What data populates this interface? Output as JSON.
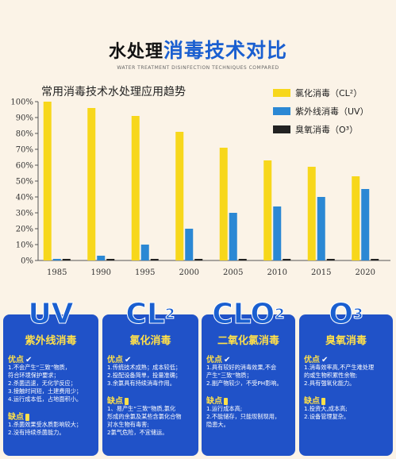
{
  "header": {
    "title_main": "水处理",
    "title_accent": "消毒技术对比",
    "subtitle": "WATER TREATMENT DISINFECTION TECHNIQUES COMPARED"
  },
  "chart_data": {
    "type": "bar",
    "title": "常用消毒技术水处理应用趋势",
    "categories": [
      "1985",
      "1990",
      "1995",
      "2000",
      "2005",
      "2010",
      "2015",
      "2020"
    ],
    "yticks": [
      "0%",
      "10%",
      "20%",
      "30%",
      "40%",
      "50%",
      "60%",
      "70%",
      "80%",
      "90%",
      "100%"
    ],
    "ylim": [
      0,
      100
    ],
    "legend_position": "top-right",
    "series": [
      {
        "name": "氯化消毒（CL²）",
        "color": "#f7d71c",
        "values": [
          100,
          96,
          91,
          81,
          71,
          63,
          59,
          53
        ]
      },
      {
        "name": "紫外线消毒（UV）",
        "color": "#2b88d4",
        "values": [
          1,
          3,
          10,
          20,
          30,
          34,
          40,
          45
        ]
      },
      {
        "name": "臭氧消毒（O³）",
        "color": "#222222",
        "values": [
          1,
          1,
          1,
          1,
          1,
          1,
          1,
          1
        ]
      }
    ]
  },
  "cards": [
    {
      "big": "UV",
      "big_sup": "",
      "name": "紫外线消毒",
      "pros_label": "优点",
      "pros": [
        "1.不会产生“三致”物质，",
        "符合环境保护要求；",
        "2.杀菌迅速，无化学反应；",
        "3.接触时间短，土建费用少；",
        "4.运行成本低，占地面积小。"
      ],
      "cons_label": "缺点",
      "cons": [
        "1.杀菌效果受水质影响较大；",
        "2.没有持续杀菌能力。"
      ]
    },
    {
      "big": "CL",
      "big_sup": "2",
      "name": "氯化消毒",
      "pros_label": "优点",
      "pros": [
        "1.传统技术成熟；成本较低；",
        "2.投配设备简单，投量准确；",
        "3.余氯具有持续消毒作用。"
      ],
      "cons_label": "缺点",
      "cons": [
        "1、易产生“三致”物质,氯化",
        "形成的余氯及某些含氯化合物",
        "对水生物有毒害;",
        "2氯气危险，不宜储运。"
      ]
    },
    {
      "big": "CLO",
      "big_sup": "2",
      "name": "二氧化氯消毒",
      "pros_label": "优点",
      "pros": [
        "1.具有较好的消毒效果,不会",
        "产生“三致”物质；",
        "2.副产物较少，不受PH影响。"
      ],
      "cons_label": "缺点",
      "cons": [
        "1.运行成本高;",
        "2.不能储存，只能现制现用，",
        "隐患大。"
      ]
    },
    {
      "big": "O",
      "big_sup": "3",
      "name": "臭氧消毒",
      "pros_label": "优点",
      "pros": [
        "1.消毒效率高,不产生难处理",
        "的或生物积累性余物;",
        "2.具有强氧化能力。"
      ],
      "cons_label": "缺点",
      "cons": [
        "1.投资大,成本高;",
        "2.设备管理复杂。"
      ]
    }
  ]
}
